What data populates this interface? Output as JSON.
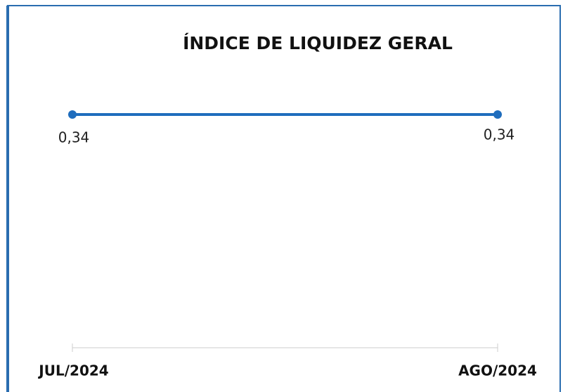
{
  "chart_data": {
    "type": "line",
    "title": "ÍNDICE DE LIQUIDEZ GERAL",
    "categories": [
      "JUL/2024",
      "AGO/2024"
    ],
    "series": [
      {
        "name": null,
        "color": "#1f6dbd",
        "values": [
          0.34,
          0.34
        ],
        "value_labels": [
          "0,34",
          "0,34"
        ]
      }
    ]
  }
}
